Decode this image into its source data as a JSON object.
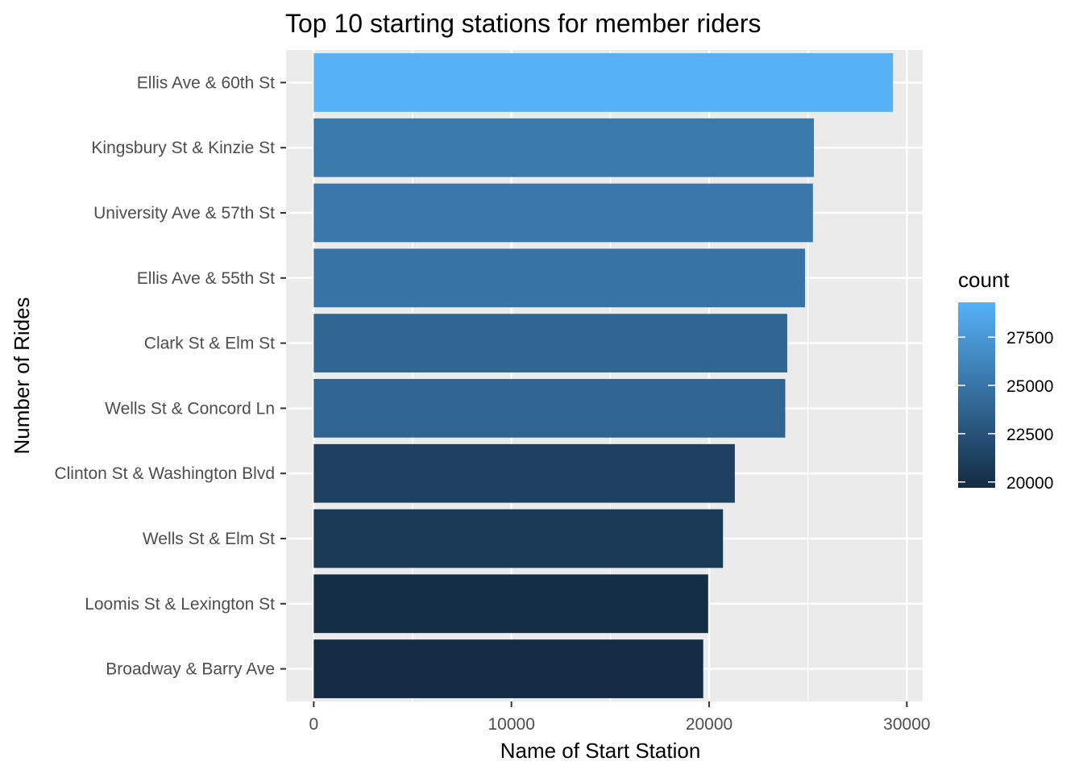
{
  "chart_data": {
    "type": "bar",
    "orientation": "horizontal",
    "title": "Top 10 starting stations for member riders",
    "xlabel": "Name of Start Station",
    "ylabel": "Number of Rides",
    "categories": [
      "Ellis Ave & 60th St",
      "Kingsbury St & Kinzie St",
      "University Ave & 57th St",
      "Ellis Ave & 55th St",
      "Clark St & Elm St",
      "Wells St & Concord Ln",
      "Clinton St & Washington Blvd",
      "Wells St & Elm St",
      "Loomis St & Lexington St",
      "Broadway & Barry Ave"
    ],
    "values": [
      29300,
      25300,
      25250,
      24850,
      23950,
      23850,
      21300,
      20700,
      19950,
      19700
    ],
    "xlim": [
      -1400,
      30800
    ],
    "xticks": [
      0,
      10000,
      20000,
      30000
    ],
    "xtick_labels": [
      "0",
      "10000",
      "20000",
      "30000"
    ],
    "grid": true,
    "legend": {
      "title": "count",
      "placement": "right",
      "range": [
        19700,
        29300
      ],
      "ticks": [
        20000,
        22500,
        25000,
        27500
      ],
      "tick_labels": [
        "20000",
        "22500",
        "25000",
        "27500"
      ],
      "color_low": "#132B43",
      "color_high": "#56B1F7"
    },
    "colors": {
      "panel_background": "#EBEBEB",
      "gridline": "#FFFFFF"
    }
  }
}
